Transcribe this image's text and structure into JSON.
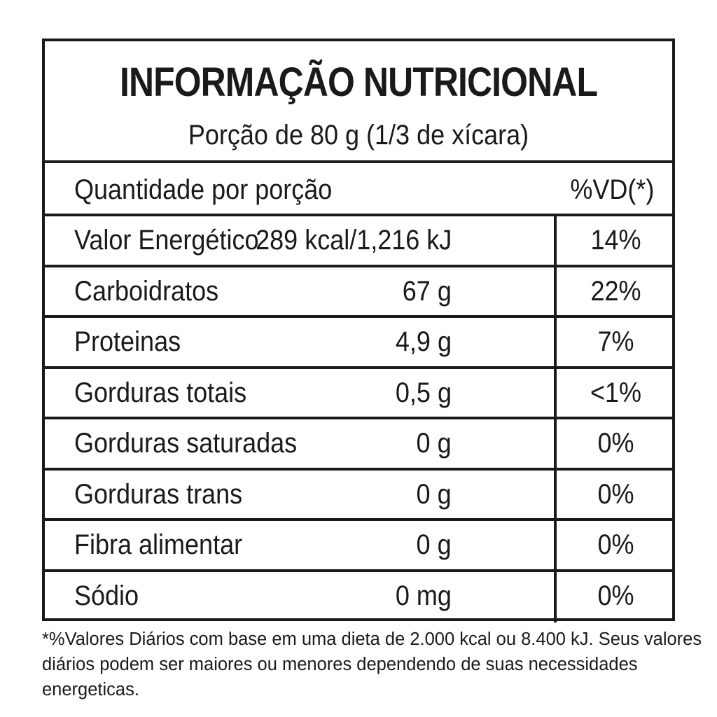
{
  "header": {
    "title": "INFORMAÇÃO NUTRICIONAL",
    "serving": "Porção de 80 g (1/3 de xícara)"
  },
  "columns": {
    "left": "Quantidade por porção",
    "right": "%VD(*)"
  },
  "rows": [
    {
      "name": "Valor Energético",
      "amount": "289 kcal/1,216 kJ",
      "vd": "14%"
    },
    {
      "name": "Carboidratos",
      "amount": "67 g",
      "vd": "22%"
    },
    {
      "name": "Proteinas",
      "amount": "4,9 g",
      "vd": "7%"
    },
    {
      "name": "Gorduras totais",
      "amount": "0,5 g",
      "vd": "<1%"
    },
    {
      "name": "Gorduras saturadas",
      "amount": "0 g",
      "vd": "0%"
    },
    {
      "name": "Gorduras trans",
      "amount": "0 g",
      "vd": "0%"
    },
    {
      "name": "Fibra alimentar",
      "amount": "0 g",
      "vd": "0%"
    },
    {
      "name": "Sódio",
      "amount": "0 mg",
      "vd": "0%"
    }
  ],
  "footnote": "*%Valores Diários com base em uma dieta de 2.000 kcal ou 8.400 kJ. Seus valores diários podem ser maiores ou menores dependendo de suas necessidades energeticas."
}
